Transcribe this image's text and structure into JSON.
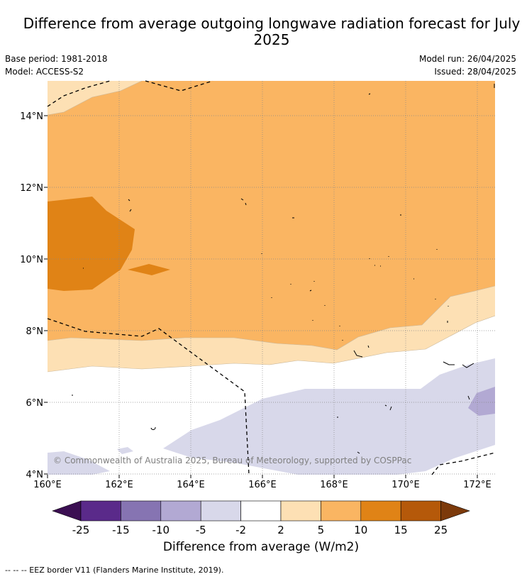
{
  "header": {
    "title": "Difference from average outgoing longwave radiation forecast for July 2025",
    "base_period": "Base period: 1981-2018",
    "model": "Model: ACCESS-S2",
    "model_run": "Model run: 26/04/2025",
    "issued": "Issued: 28/04/2025"
  },
  "map": {
    "lon_ticks": [
      "160°E",
      "162°E",
      "164°E",
      "166°E",
      "168°E",
      "170°E",
      "172°E"
    ],
    "lat_ticks": [
      "14°N",
      "12°N",
      "10°N",
      "8°N",
      "6°N",
      "4°N"
    ],
    "copyright": "© Commonwealth of Australia 2025, Bureau of Meteorology, supported by COSPPac"
  },
  "colorbar": {
    "title": "Difference from average (W/m2)",
    "tick_labels": [
      "-25",
      "-15",
      "-10",
      "-5",
      "-2",
      "2",
      "5",
      "10",
      "15",
      "25"
    ],
    "colors": {
      "below_min": "#3b0f52",
      "c1": "#5a2a8a",
      "c2": "#8674b2",
      "c3": "#b2a9d3",
      "c4": "#d8d8ea",
      "c5": "#ffffff",
      "c6": "#fde0b4",
      "c7": "#fab562",
      "c8": "#e08316",
      "c9": "#b5590a",
      "above_max": "#7c3a0b"
    }
  },
  "footer": {
    "legend_text": "--  --  -- EEZ border V11 (Flanders Marine Institute, 2019)."
  }
}
